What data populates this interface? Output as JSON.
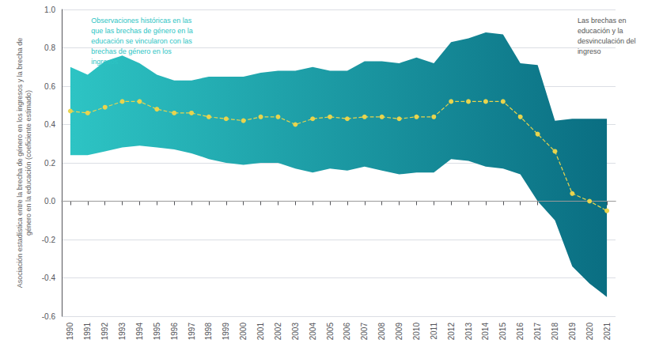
{
  "chart_data": {
    "type": "line",
    "x": [
      1990,
      1991,
      1992,
      1993,
      1994,
      1995,
      1996,
      1997,
      1998,
      1999,
      2000,
      2001,
      2002,
      2003,
      2004,
      2005,
      2006,
      2007,
      2008,
      2009,
      2010,
      2011,
      2012,
      2013,
      2014,
      2015,
      2016,
      2017,
      2018,
      2019,
      2020,
      2021
    ],
    "values": [
      0.47,
      0.46,
      0.49,
      0.52,
      0.52,
      0.48,
      0.46,
      0.46,
      0.44,
      0.43,
      0.42,
      0.44,
      0.44,
      0.4,
      0.43,
      0.44,
      0.43,
      0.44,
      0.44,
      0.43,
      0.44,
      0.44,
      0.52,
      0.52,
      0.52,
      0.52,
      0.44,
      0.35,
      0.26,
      0.04,
      0.0,
      -0.05
    ],
    "upper": [
      0.7,
      0.66,
      0.73,
      0.76,
      0.72,
      0.66,
      0.63,
      0.63,
      0.65,
      0.65,
      0.65,
      0.67,
      0.68,
      0.68,
      0.7,
      0.68,
      0.68,
      0.73,
      0.73,
      0.72,
      0.75,
      0.72,
      0.83,
      0.85,
      0.88,
      0.87,
      0.72,
      0.71,
      0.42,
      0.43,
      0.43,
      0.43
    ],
    "lower": [
      0.24,
      0.24,
      0.26,
      0.28,
      0.29,
      0.28,
      0.27,
      0.25,
      0.22,
      0.2,
      0.19,
      0.2,
      0.2,
      0.17,
      0.15,
      0.17,
      0.16,
      0.18,
      0.16,
      0.14,
      0.15,
      0.15,
      0.22,
      0.21,
      0.18,
      0.17,
      0.14,
      0.0,
      -0.1,
      -0.34,
      -0.43,
      -0.5
    ],
    "color": "#E8D44D",
    "band_colors": [
      "#2DC4C4",
      "#0A6E82"
    ],
    "line_style": "dashed",
    "marker": "circle",
    "ylabel": "Asociación estadística entre la brecha de género en los ingresos y la brecha de\ngénero en la educación (coeficiente estimado)",
    "xlim": [
      1989.5,
      2021.5
    ],
    "xticks": [
      1990,
      1991,
      1992,
      1993,
      1994,
      1995,
      1996,
      1997,
      1998,
      1999,
      2000,
      2001,
      2002,
      2003,
      2004,
      2005,
      2006,
      2007,
      2008,
      2009,
      2010,
      2011,
      2012,
      2013,
      2014,
      2015,
      2016,
      2017,
      2018,
      2019,
      2020,
      2021
    ],
    "ylim": [
      -0.6,
      1.0
    ],
    "yticks": [
      -0.6,
      -0.4,
      -0.2,
      {
        "value": 0,
        "label": "0.0"
      },
      0.2,
      0.4,
      0.6,
      0.8,
      {
        "value": 1,
        "label": "1.0"
      }
    ],
    "grid": true,
    "annotations": [
      {
        "text": "Observaciones históricas en las\nque las brechas de género en la\neducación se vincularon con las\nbrechas de género en los\ningresos",
        "x": 1991.2,
        "y": 0.97,
        "color": "#2DC4C4"
      },
      {
        "text": "Las brechas en\neducación y la\ndesvinculación del\ningreso",
        "x": 2019.3,
        "y": 0.97,
        "color": "#555555"
      }
    ]
  }
}
